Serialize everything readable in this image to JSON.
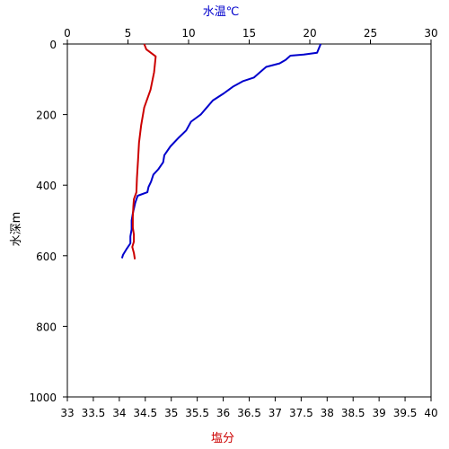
{
  "chart_data": {
    "type": "line",
    "top_axis": {
      "label": "水温℃",
      "range": [
        0,
        30
      ],
      "ticks": [
        0,
        5,
        10,
        15,
        20,
        25,
        30
      ],
      "color": "#0000cc"
    },
    "bottom_axis": {
      "label": "塩分",
      "range": [
        33,
        40
      ],
      "ticks": [
        33,
        33.5,
        34,
        34.5,
        35,
        35.5,
        36,
        36.5,
        37,
        37.5,
        38,
        38.5,
        39,
        39.5,
        40
      ],
      "color": "#cc0000"
    },
    "y_axis": {
      "label": "水深m",
      "range": [
        0,
        1000
      ],
      "inverted": true,
      "ticks": [
        0,
        200,
        400,
        600,
        800,
        1000
      ]
    },
    "grid": false,
    "series": [
      {
        "axis": "top",
        "color": "#0000cc",
        "points": [
          [
            20.9,
            0
          ],
          [
            20.6,
            25
          ],
          [
            19.5,
            30
          ],
          [
            18.4,
            33
          ],
          [
            18.0,
            45
          ],
          [
            17.5,
            55
          ],
          [
            16.4,
            65
          ],
          [
            15.9,
            80
          ],
          [
            15.4,
            95
          ],
          [
            14.5,
            105
          ],
          [
            13.7,
            120
          ],
          [
            12.9,
            140
          ],
          [
            12.0,
            160
          ],
          [
            11.5,
            180
          ],
          [
            11.0,
            200
          ],
          [
            10.2,
            220
          ],
          [
            9.8,
            245
          ],
          [
            9.2,
            265
          ],
          [
            8.5,
            290
          ],
          [
            8.0,
            315
          ],
          [
            7.9,
            335
          ],
          [
            7.5,
            355
          ],
          [
            7.1,
            370
          ],
          [
            6.9,
            390
          ],
          [
            6.7,
            405
          ],
          [
            6.6,
            420
          ],
          [
            5.8,
            430
          ],
          [
            5.6,
            450
          ],
          [
            5.5,
            465
          ],
          [
            5.4,
            480
          ],
          [
            5.3,
            500
          ],
          [
            5.3,
            525
          ],
          [
            5.2,
            545
          ],
          [
            5.2,
            565
          ],
          [
            4.9,
            580
          ],
          [
            4.6,
            597
          ],
          [
            4.5,
            607
          ]
        ]
      },
      {
        "axis": "bottom",
        "color": "#cc0000",
        "points": [
          [
            34.48,
            0
          ],
          [
            34.52,
            15
          ],
          [
            34.7,
            35
          ],
          [
            34.67,
            80
          ],
          [
            34.6,
            130
          ],
          [
            34.48,
            180
          ],
          [
            34.42,
            230
          ],
          [
            34.38,
            280
          ],
          [
            34.36,
            330
          ],
          [
            34.34,
            380
          ],
          [
            34.33,
            420
          ],
          [
            34.28,
            440
          ],
          [
            34.27,
            460
          ],
          [
            34.26,
            490
          ],
          [
            34.26,
            520
          ],
          [
            34.28,
            540
          ],
          [
            34.28,
            560
          ],
          [
            34.25,
            575
          ],
          [
            34.28,
            592
          ],
          [
            34.3,
            610
          ]
        ]
      }
    ]
  }
}
